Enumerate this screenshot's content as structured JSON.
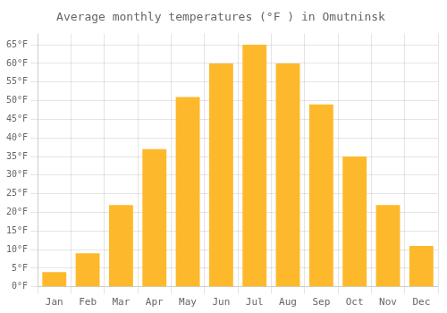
{
  "chart_data": {
    "type": "bar",
    "title": "Average monthly temperatures (°F ) in Omutninsk",
    "categories": [
      "Jan",
      "Feb",
      "Mar",
      "Apr",
      "May",
      "Jun",
      "Jul",
      "Aug",
      "Sep",
      "Oct",
      "Nov",
      "Dec"
    ],
    "values": [
      4,
      9,
      22,
      37,
      51,
      60,
      65,
      60,
      49,
      35,
      22,
      11
    ],
    "color": "#FDB92B",
    "ylim": [
      0,
      68
    ],
    "yticks": [
      {
        "value": 0,
        "label": "0°F"
      },
      {
        "value": 5,
        "label": "5°F"
      },
      {
        "value": 10,
        "label": "10°F"
      },
      {
        "value": 15,
        "label": "15°F"
      },
      {
        "value": 20,
        "label": "20°F"
      },
      {
        "value": 25,
        "label": "25°F"
      },
      {
        "value": 30,
        "label": "30°F"
      },
      {
        "value": 35,
        "label": "35°F"
      },
      {
        "value": 40,
        "label": "40°F"
      },
      {
        "value": 45,
        "label": "45°F"
      },
      {
        "value": 50,
        "label": "50°F"
      },
      {
        "value": 55,
        "label": "55°F"
      },
      {
        "value": 60,
        "label": "60°F"
      },
      {
        "value": 65,
        "label": "65°F"
      }
    ],
    "grid": true
  }
}
